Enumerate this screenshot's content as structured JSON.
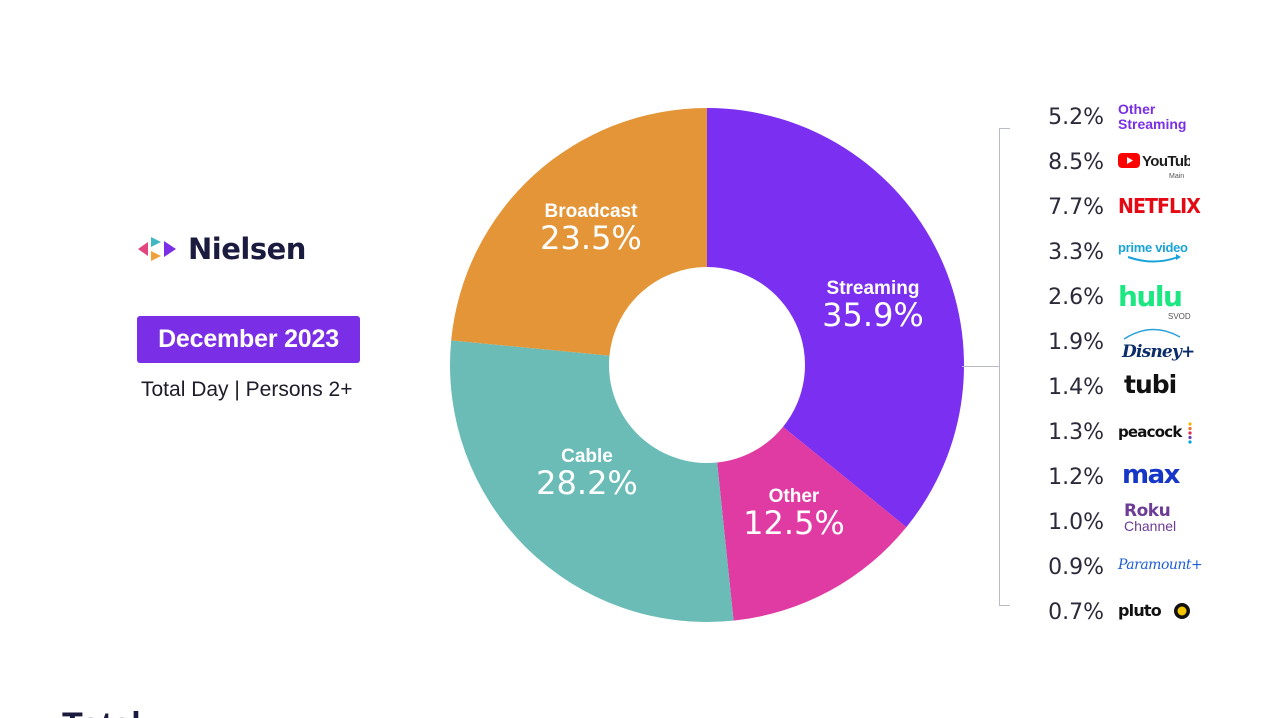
{
  "brand": {
    "name": "Nielsen",
    "icon": "nielsen-logo-icon"
  },
  "badge": {
    "label": "December 2023",
    "color": "#7a2fe6"
  },
  "subtitle": "Total Day | Persons 2+",
  "footer_partial_text": "Total",
  "chart_data": {
    "type": "pie",
    "donut": true,
    "title": "",
    "categories": [
      "Streaming",
      "Other",
      "Cable",
      "Broadcast"
    ],
    "values": [
      35.9,
      12.5,
      28.2,
      23.5
    ],
    "labels": [
      "35.9%",
      "12.5%",
      "28.2%",
      "23.5%"
    ],
    "colors": [
      "#7b2ff0",
      "#e03aa3",
      "#6bbcb7",
      "#e39537"
    ],
    "streaming_breakdown": {
      "items": [
        {
          "name": "Other Streaming",
          "value": 5.2,
          "label": "5.2%"
        },
        {
          "name": "YouTube Main",
          "value": 8.5,
          "label": "8.5%"
        },
        {
          "name": "Netflix",
          "value": 7.7,
          "label": "7.7%"
        },
        {
          "name": "Prime Video",
          "value": 3.3,
          "label": "3.3%"
        },
        {
          "name": "Hulu SVOD",
          "value": 2.6,
          "label": "2.6%"
        },
        {
          "name": "Disney+",
          "value": 1.9,
          "label": "1.9%"
        },
        {
          "name": "Tubi",
          "value": 1.4,
          "label": "1.4%"
        },
        {
          "name": "Peacock",
          "value": 1.3,
          "label": "1.3%"
        },
        {
          "name": "Max",
          "value": 1.2,
          "label": "1.2%"
        },
        {
          "name": "Roku Channel",
          "value": 1.0,
          "label": "1.0%"
        },
        {
          "name": "Paramount+",
          "value": 0.9,
          "label": "0.9%"
        },
        {
          "name": "Pluto TV",
          "value": 0.7,
          "label": "0.7%"
        }
      ]
    }
  },
  "logos": {
    "other_streaming": [
      "Other",
      "Streaming"
    ],
    "youtube": {
      "word": "YouTube",
      "sub": "Main"
    },
    "netflix": "NETFLIX",
    "prime": "prime video",
    "hulu": {
      "word": "hulu",
      "sub": "SVOD"
    },
    "disney": "Disney+",
    "tubi": "tubi",
    "peacock": "peacock",
    "max": "max",
    "roku": [
      "Roku",
      "Channel"
    ],
    "paramount": "Paramount+",
    "pluto": "pluto"
  }
}
